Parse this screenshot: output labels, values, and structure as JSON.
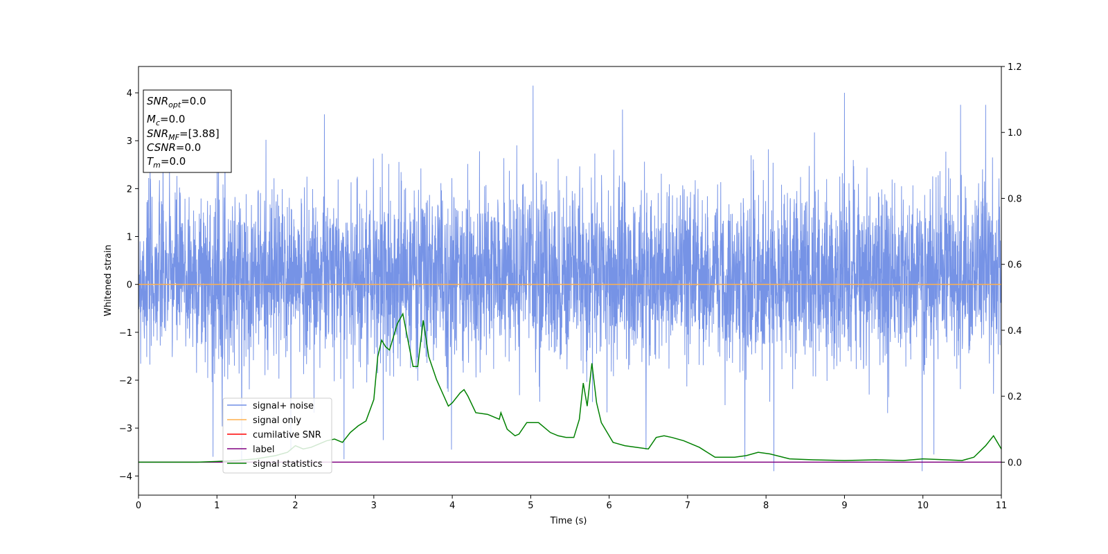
{
  "chart_data": {
    "type": "line",
    "xlabel": "Time (s)",
    "ylabel": "Whitened strain",
    "xlim": [
      0,
      11
    ],
    "ylim": [
      -4.4,
      4.55
    ],
    "y2lim": [
      -0.1,
      1.2
    ],
    "x_ticks": [
      "0",
      "1",
      "2",
      "3",
      "4",
      "5",
      "6",
      "7",
      "8",
      "9",
      "10",
      "11"
    ],
    "y_ticks": [
      "−4",
      "−3",
      "−2",
      "−1",
      "0",
      "1",
      "2",
      "3",
      "4"
    ],
    "y2_ticks": [
      "0.0",
      "0.2",
      "0.4",
      "0.6",
      "0.8",
      "1.0",
      "1.2"
    ],
    "grid": false,
    "legend_position": "lower-left",
    "info_box": {
      "snr_opt": {
        "sym": "SNR",
        "sub": "opt",
        "value": "=0.0"
      },
      "mc": {
        "sym": "M",
        "sub": "c",
        "value": "=0.0"
      },
      "snr_mf": {
        "sym": "SNR",
        "sub": "MF",
        "value": "=[3.88]"
      },
      "csnr": {
        "sym": "CSNR",
        "value": "=0.0"
      },
      "tm": {
        "sym": "T",
        "sub": "m",
        "value": "=0.0"
      }
    },
    "series": [
      {
        "name": "signal+ noise",
        "color": "#6f8de5",
        "axis": "left",
        "description_values": {
          "envelope_typical": [
            -1.5,
            1.8
          ],
          "peaks": [
            [
              1.02,
              3.45
            ],
            [
              2.37,
              3.55
            ],
            [
              5.03,
              4.15
            ],
            [
              6.17,
              3.65
            ],
            [
              9.0,
              4.0
            ],
            [
              10.48,
              3.75
            ],
            [
              10.8,
              3.75
            ]
          ],
          "troughs": [
            [
              0.95,
              -3.6
            ],
            [
              2.62,
              -3.65
            ],
            [
              3.12,
              -3.25
            ],
            [
              3.99,
              -3.45
            ],
            [
              6.47,
              -3.45
            ],
            [
              7.73,
              -3.65
            ],
            [
              8.1,
              -3.9
            ],
            [
              9.99,
              -3.9
            ],
            [
              10.14,
              -3.55
            ]
          ]
        }
      },
      {
        "name": "signal only",
        "color": "#ffb04d",
        "axis": "left",
        "x": [
          0,
          11
        ],
        "y": [
          0,
          0
        ]
      },
      {
        "name": "cumilative SNR",
        "color": "#ff0000",
        "axis": "left",
        "x": [],
        "y": []
      },
      {
        "name": "label",
        "color": "#800080",
        "axis": "right",
        "x": [
          0,
          11
        ],
        "y": [
          0.0,
          0.0
        ]
      },
      {
        "name": "signal statistics",
        "color": "#008000",
        "axis": "right",
        "x": [
          0,
          0.25,
          0.5,
          0.75,
          1.0,
          1.25,
          1.5,
          1.75,
          1.9,
          2.0,
          2.1,
          2.2,
          2.3,
          2.4,
          2.5,
          2.6,
          2.7,
          2.8,
          2.9,
          3.0,
          3.05,
          3.1,
          3.15,
          3.2,
          3.3,
          3.37,
          3.5,
          3.56,
          3.63,
          3.7,
          3.8,
          3.95,
          4.0,
          4.1,
          4.15,
          4.2,
          4.3,
          4.45,
          4.5,
          4.6,
          4.62,
          4.7,
          4.8,
          4.85,
          4.95,
          5.1,
          5.25,
          5.35,
          5.45,
          5.55,
          5.62,
          5.67,
          5.72,
          5.78,
          5.84,
          5.9,
          6.05,
          6.2,
          6.35,
          6.5,
          6.6,
          6.7,
          6.8,
          6.95,
          7.05,
          7.15,
          7.25,
          7.35,
          7.6,
          7.75,
          7.9,
          8.05,
          8.3,
          8.6,
          9.0,
          9.4,
          9.75,
          10.0,
          10.3,
          10.5,
          10.65,
          10.8,
          10.9,
          11.0
        ],
        "y": [
          0.0,
          0.0,
          0.0,
          0.0,
          0.002,
          0.005,
          0.01,
          0.02,
          0.03,
          0.05,
          0.04,
          0.045,
          0.055,
          0.065,
          0.07,
          0.06,
          0.09,
          0.11,
          0.125,
          0.19,
          0.32,
          0.37,
          0.35,
          0.34,
          0.42,
          0.45,
          0.29,
          0.29,
          0.43,
          0.32,
          0.25,
          0.17,
          0.18,
          0.21,
          0.22,
          0.2,
          0.15,
          0.145,
          0.14,
          0.13,
          0.15,
          0.1,
          0.08,
          0.085,
          0.12,
          0.12,
          0.09,
          0.08,
          0.075,
          0.075,
          0.13,
          0.24,
          0.17,
          0.3,
          0.18,
          0.12,
          0.06,
          0.05,
          0.045,
          0.04,
          0.075,
          0.08,
          0.075,
          0.065,
          0.055,
          0.045,
          0.03,
          0.015,
          0.015,
          0.02,
          0.03,
          0.025,
          0.01,
          0.007,
          0.005,
          0.007,
          0.005,
          0.01,
          0.007,
          0.005,
          0.015,
          0.05,
          0.08,
          0.04
        ]
      }
    ]
  }
}
